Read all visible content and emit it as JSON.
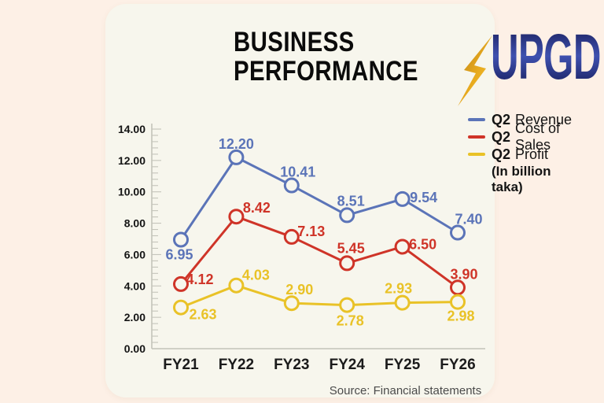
{
  "header": {
    "title_line1": "BUSINESS",
    "title_line2": "PERFORMANCE"
  },
  "logo": {
    "text": "UPGD",
    "icon": "lightning-bolt",
    "text_color": "#232a7a",
    "bolt_color_dark": "#bc8117",
    "bolt_color_light": "#f4c838"
  },
  "legend": {
    "items": [
      {
        "prefix": "Q2",
        "label": "Revenue",
        "color": "#5b74b8"
      },
      {
        "prefix": "Q2",
        "label": "Cost of Sales",
        "color": "#cf3428"
      },
      {
        "prefix": "Q2",
        "label": "Profit",
        "color": "#e9c227"
      }
    ],
    "note": "(In billion taka)"
  },
  "chart_data": {
    "type": "line",
    "title": "Business Performance",
    "unit": "billion taka",
    "categories": [
      "FY21",
      "FY22",
      "FY23",
      "FY24",
      "FY25",
      "FY26"
    ],
    "series": [
      {
        "name": "Q2 Revenue",
        "color": "#5b74b8",
        "values": [
          6.95,
          12.2,
          10.41,
          8.51,
          9.54,
          7.4
        ],
        "value_labels": [
          "6.95",
          "12.20",
          "10.41",
          "8.51",
          "9.54",
          "7.40"
        ]
      },
      {
        "name": "Q2 Cost of Sales",
        "color": "#cf3428",
        "values": [
          4.12,
          8.42,
          7.13,
          5.45,
          6.5,
          3.9
        ],
        "value_labels": [
          "4.12",
          "8.42",
          "7.13",
          "5.45",
          "6.50",
          "3.90"
        ]
      },
      {
        "name": "Q2 Profit",
        "color": "#e9c227",
        "values": [
          2.63,
          4.03,
          2.9,
          2.78,
          2.93,
          2.98
        ],
        "value_labels": [
          "2.63",
          "4.03",
          "2.90",
          "2.78",
          "2.93",
          "2.98"
        ]
      }
    ],
    "ylim": [
      0,
      14
    ],
    "y_tick_step": 2,
    "y_minor_tick_step": 0.4,
    "y_tick_labels": [
      "0.00",
      "2.00",
      "4.00",
      "6.00",
      "8.00",
      "10.00",
      "12.00",
      "14.00"
    ],
    "grid": false,
    "legend_position": "top-right",
    "label_offsets": [
      [
        [
          -2,
          19
        ],
        [
          0,
          -17
        ],
        [
          8,
          -17
        ],
        [
          5,
          -18
        ],
        [
          27,
          -2
        ],
        [
          14,
          -17
        ]
      ],
      [
        [
          24,
          -6
        ],
        [
          26,
          -11
        ],
        [
          25,
          -7
        ],
        [
          5,
          -19
        ],
        [
          26,
          -3
        ],
        [
          8,
          -17
        ]
      ],
      [
        [
          28,
          9
        ],
        [
          25,
          -13
        ],
        [
          10,
          -17
        ],
        [
          4,
          20
        ],
        [
          -5,
          -18
        ],
        [
          4,
          18
        ]
      ]
    ]
  },
  "footer": {
    "source": "Source: Financial statements"
  },
  "colors": {
    "page_bg": "#fdf0e6",
    "card_bg": "#f7f6ed",
    "axis": "#c4c4ba",
    "y_label": "#141414",
    "x_label": "#1b1b1b",
    "source_text": "#4b4b4b"
  }
}
